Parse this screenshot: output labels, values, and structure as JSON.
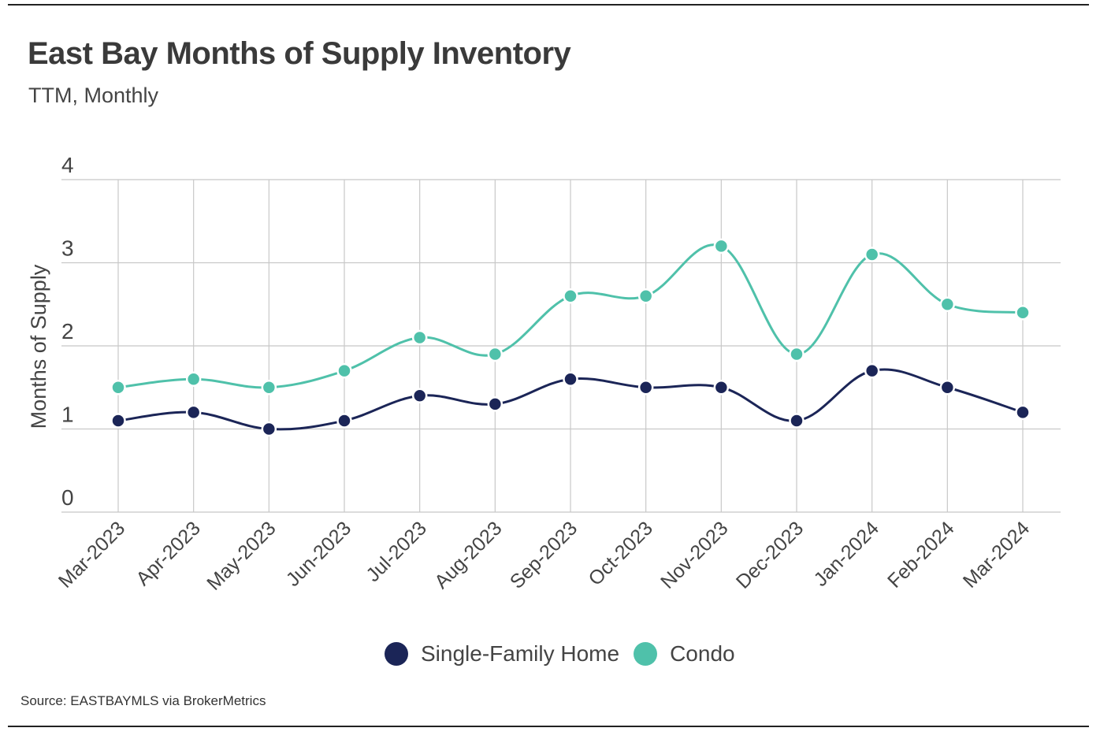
{
  "header": {
    "title": "East Bay Months of Supply Inventory",
    "subtitle": "TTM, Monthly"
  },
  "footer": {
    "source": "Source:  EASTBAYMLS via BrokerMetrics"
  },
  "colors": {
    "single_family": "#1b2557",
    "condo": "#4fc1aa",
    "grid": "#c8c8c8"
  },
  "chart_data": {
    "type": "line",
    "title": "East Bay Months of Supply Inventory",
    "subtitle": "TTM, Monthly",
    "xlabel": "",
    "ylabel": "Months of Supply",
    "ylim": [
      0,
      4
    ],
    "yticks": [
      0,
      1,
      2,
      3,
      4
    ],
    "grid": true,
    "legend_position": "bottom-center",
    "categories": [
      "Mar-2023",
      "Apr-2023",
      "May-2023",
      "Jun-2023",
      "Jul-2023",
      "Aug-2023",
      "Sep-2023",
      "Oct-2023",
      "Nov-2023",
      "Dec-2023",
      "Jan-2024",
      "Feb-2024",
      "Mar-2024"
    ],
    "series": [
      {
        "name": "Single-Family Home",
        "color": "#1b2557",
        "values": [
          1.1,
          1.2,
          1.0,
          1.1,
          1.4,
          1.3,
          1.6,
          1.5,
          1.5,
          1.1,
          1.7,
          1.5,
          1.2
        ]
      },
      {
        "name": "Condo",
        "color": "#4fc1aa",
        "values": [
          1.5,
          1.6,
          1.5,
          1.7,
          2.1,
          1.9,
          2.6,
          2.6,
          3.2,
          1.9,
          3.1,
          2.5,
          2.4
        ]
      }
    ]
  }
}
